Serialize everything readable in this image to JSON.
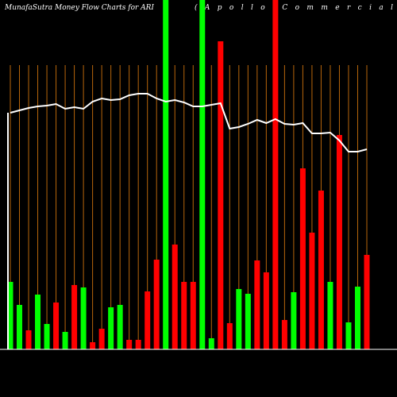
{
  "chart_data": {
    "type": "bar",
    "title": "MunafaSutra  Money Flow  Charts for ARI",
    "subtitle": "(Apollo  Commercial",
    "categories": [
      null,
      null,
      null,
      null,
      null,
      null,
      null,
      null,
      null,
      null,
      null,
      null,
      null,
      null,
      null,
      null,
      null,
      null,
      null,
      null,
      null,
      null,
      null,
      null,
      null,
      null,
      null,
      null,
      null,
      null,
      null,
      null,
      null,
      null,
      null,
      null,
      null,
      null,
      null,
      null
    ],
    "values": [
      85,
      56,
      24,
      69,
      32,
      59,
      22,
      81,
      78,
      9,
      26,
      53,
      56,
      12,
      12,
      73,
      113,
      440,
      132,
      85,
      85,
      440,
      14,
      388,
      33,
      76,
      70,
      112,
      97,
      440,
      37,
      72,
      228,
      147,
      200,
      85,
      270,
      34,
      79,
      119
    ],
    "colors": [
      "#00ff00",
      "#00ff00",
      "#ff0000",
      "#00ff00",
      "#00ff00",
      "#ff0000",
      "#00ff00",
      "#ff0000",
      "#00ff00",
      "#ff0000",
      "#ff0000",
      "#00ff00",
      "#00ff00",
      "#ff0000",
      "#ff0000",
      "#ff0000",
      "#ff0000",
      "#00ff00",
      "#ff0000",
      "#ff0000",
      "#ff0000",
      "#00ff00",
      "#00ff00",
      "#ff0000",
      "#ff0000",
      "#00ff00",
      "#00ff00",
      "#ff0000",
      "#ff0000",
      "#ff0000",
      "#ff0000",
      "#00ff00",
      "#ff0000",
      "#ff0000",
      "#ff0000",
      "#00ff00",
      "#ff0000",
      "#00ff00",
      "#00ff00",
      "#ff0000"
    ],
    "line": {
      "color": "#ffffff",
      "values": [
        298,
        301,
        304,
        306,
        307,
        309,
        303,
        305,
        303,
        312,
        316,
        314,
        315,
        320,
        322,
        322,
        316,
        312,
        314,
        311,
        306,
        306,
        308,
        310,
        278,
        280,
        284,
        289,
        285,
        290,
        284,
        283,
        285,
        272,
        272,
        273,
        263,
        249,
        249,
        252
      ]
    },
    "ylim": [
      0,
      440
    ],
    "grid_color": "#b8660b"
  }
}
